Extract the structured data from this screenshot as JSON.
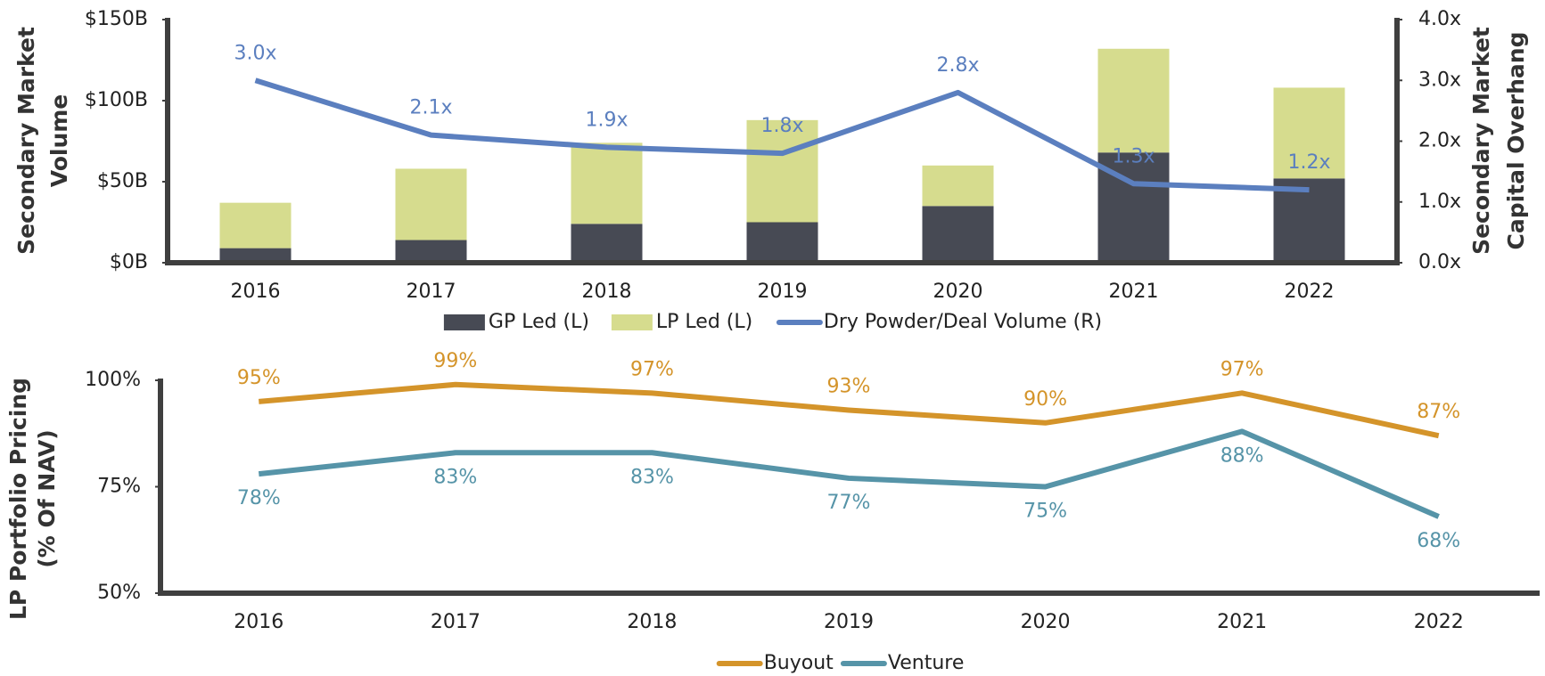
{
  "chart_data": [
    {
      "type": "bar",
      "categories": [
        "2016",
        "2017",
        "2018",
        "2019",
        "2020",
        "2021",
        "2022"
      ],
      "ylabel": [
        "Secondary Market",
        "Volume"
      ],
      "y2label": [
        "Secondary Market",
        "Capital Overhang"
      ],
      "ylim": [
        0,
        150
      ],
      "yticks": [
        {
          "value": 0,
          "label": "$0B"
        },
        {
          "value": 50,
          "label": "$50B"
        },
        {
          "value": 100,
          "label": "$100B"
        },
        {
          "value": 150,
          "label": "$150B"
        }
      ],
      "y2lim": [
        0,
        4
      ],
      "y2ticks": [
        {
          "value": 0,
          "label": "0.0x"
        },
        {
          "value": 1,
          "label": "1.0x"
        },
        {
          "value": 2,
          "label": "2.0x"
        },
        {
          "value": 3,
          "label": "3.0x"
        },
        {
          "value": 4,
          "label": "4.0x"
        }
      ],
      "series": [
        {
          "name": "GP Led (L)",
          "color": "#474a54",
          "values": [
            9,
            14,
            24,
            25,
            35,
            68,
            52
          ]
        },
        {
          "name": "LP Led (L)",
          "color": "#d6dc8e",
          "values": [
            28,
            44,
            50,
            63,
            25,
            64,
            56
          ]
        },
        {
          "name": "Dry Powder/Deal Volume (R)",
          "color": "#5b7fbf",
          "type": "line",
          "axis": "y2",
          "values": [
            3.0,
            2.1,
            1.9,
            1.8,
            2.8,
            1.3,
            1.2
          ],
          "value_labels": [
            "3.0x",
            "2.1x",
            "1.9x",
            "1.8x",
            "2.8x",
            "1.3x",
            "1.2x"
          ]
        }
      ]
    },
    {
      "type": "line",
      "categories": [
        "2016",
        "2017",
        "2018",
        "2019",
        "2020",
        "2021",
        "2022"
      ],
      "ylabel": [
        "LP Portfolio Pricing",
        "(% Of NAV)"
      ],
      "ylim": [
        50,
        100
      ],
      "yticks": [
        {
          "value": 50,
          "label": "50%"
        },
        {
          "value": 75,
          "label": "75%"
        },
        {
          "value": 100,
          "label": "100%"
        }
      ],
      "series": [
        {
          "name": "Buyout",
          "color": "#d4942a",
          "values": [
            95,
            99,
            97,
            93,
            90,
            97,
            87
          ],
          "value_labels": [
            "95%",
            "99%",
            "97%",
            "93%",
            "90%",
            "97%",
            "87%"
          ]
        },
        {
          "name": "Venture",
          "color": "#5694a8",
          "values": [
            78,
            83,
            83,
            77,
            75,
            88,
            68
          ],
          "value_labels": [
            "78%",
            "83%",
            "83%",
            "77%",
            "75%",
            "88%",
            "68%"
          ]
        }
      ]
    }
  ]
}
